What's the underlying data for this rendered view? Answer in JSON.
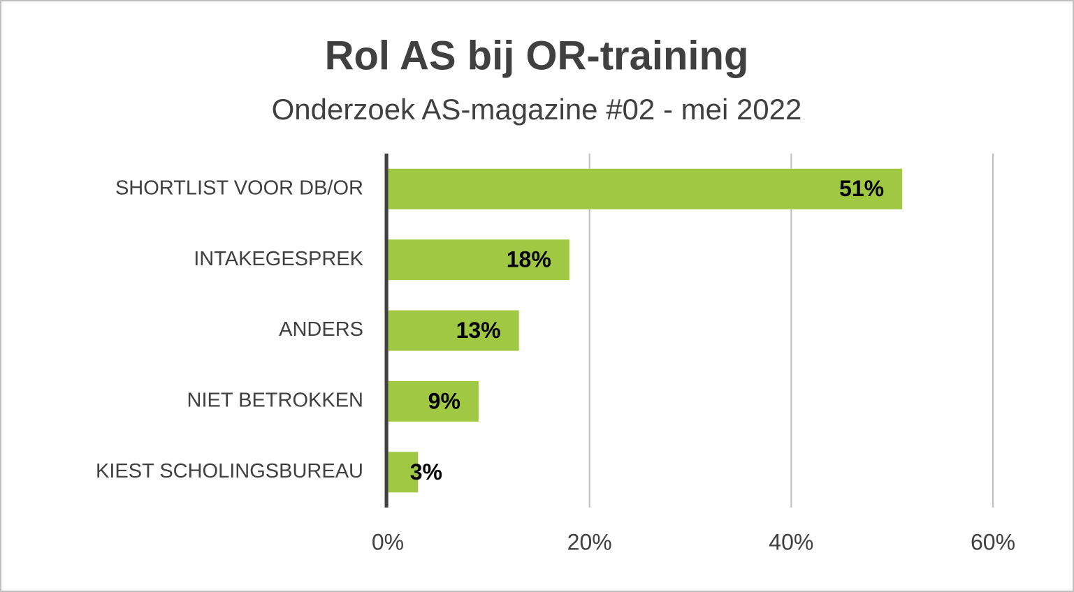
{
  "chart_data": {
    "type": "bar",
    "orientation": "horizontal",
    "title": "Rol AS bij OR-training",
    "subtitle": "Onderzoek AS-magazine #02 - mei 2022",
    "categories": [
      "SHORTLIST VOOR DB/OR",
      "INTAKEGESPREK",
      "ANDERS",
      "NIET BETROKKEN",
      "KIEST SCHOLINGSBUREAU"
    ],
    "values": [
      51,
      18,
      13,
      9,
      3
    ],
    "value_labels": [
      "51%",
      "18%",
      "13%",
      "9%",
      "3%"
    ],
    "color": "#a1c842",
    "xlim": [
      0,
      60
    ],
    "xticks": [
      {
        "value": 0,
        "label": "0%"
      },
      {
        "value": 20,
        "label": "20%"
      },
      {
        "value": 40,
        "label": "40%"
      },
      {
        "value": 60,
        "label": "60%"
      }
    ],
    "grid": true
  }
}
